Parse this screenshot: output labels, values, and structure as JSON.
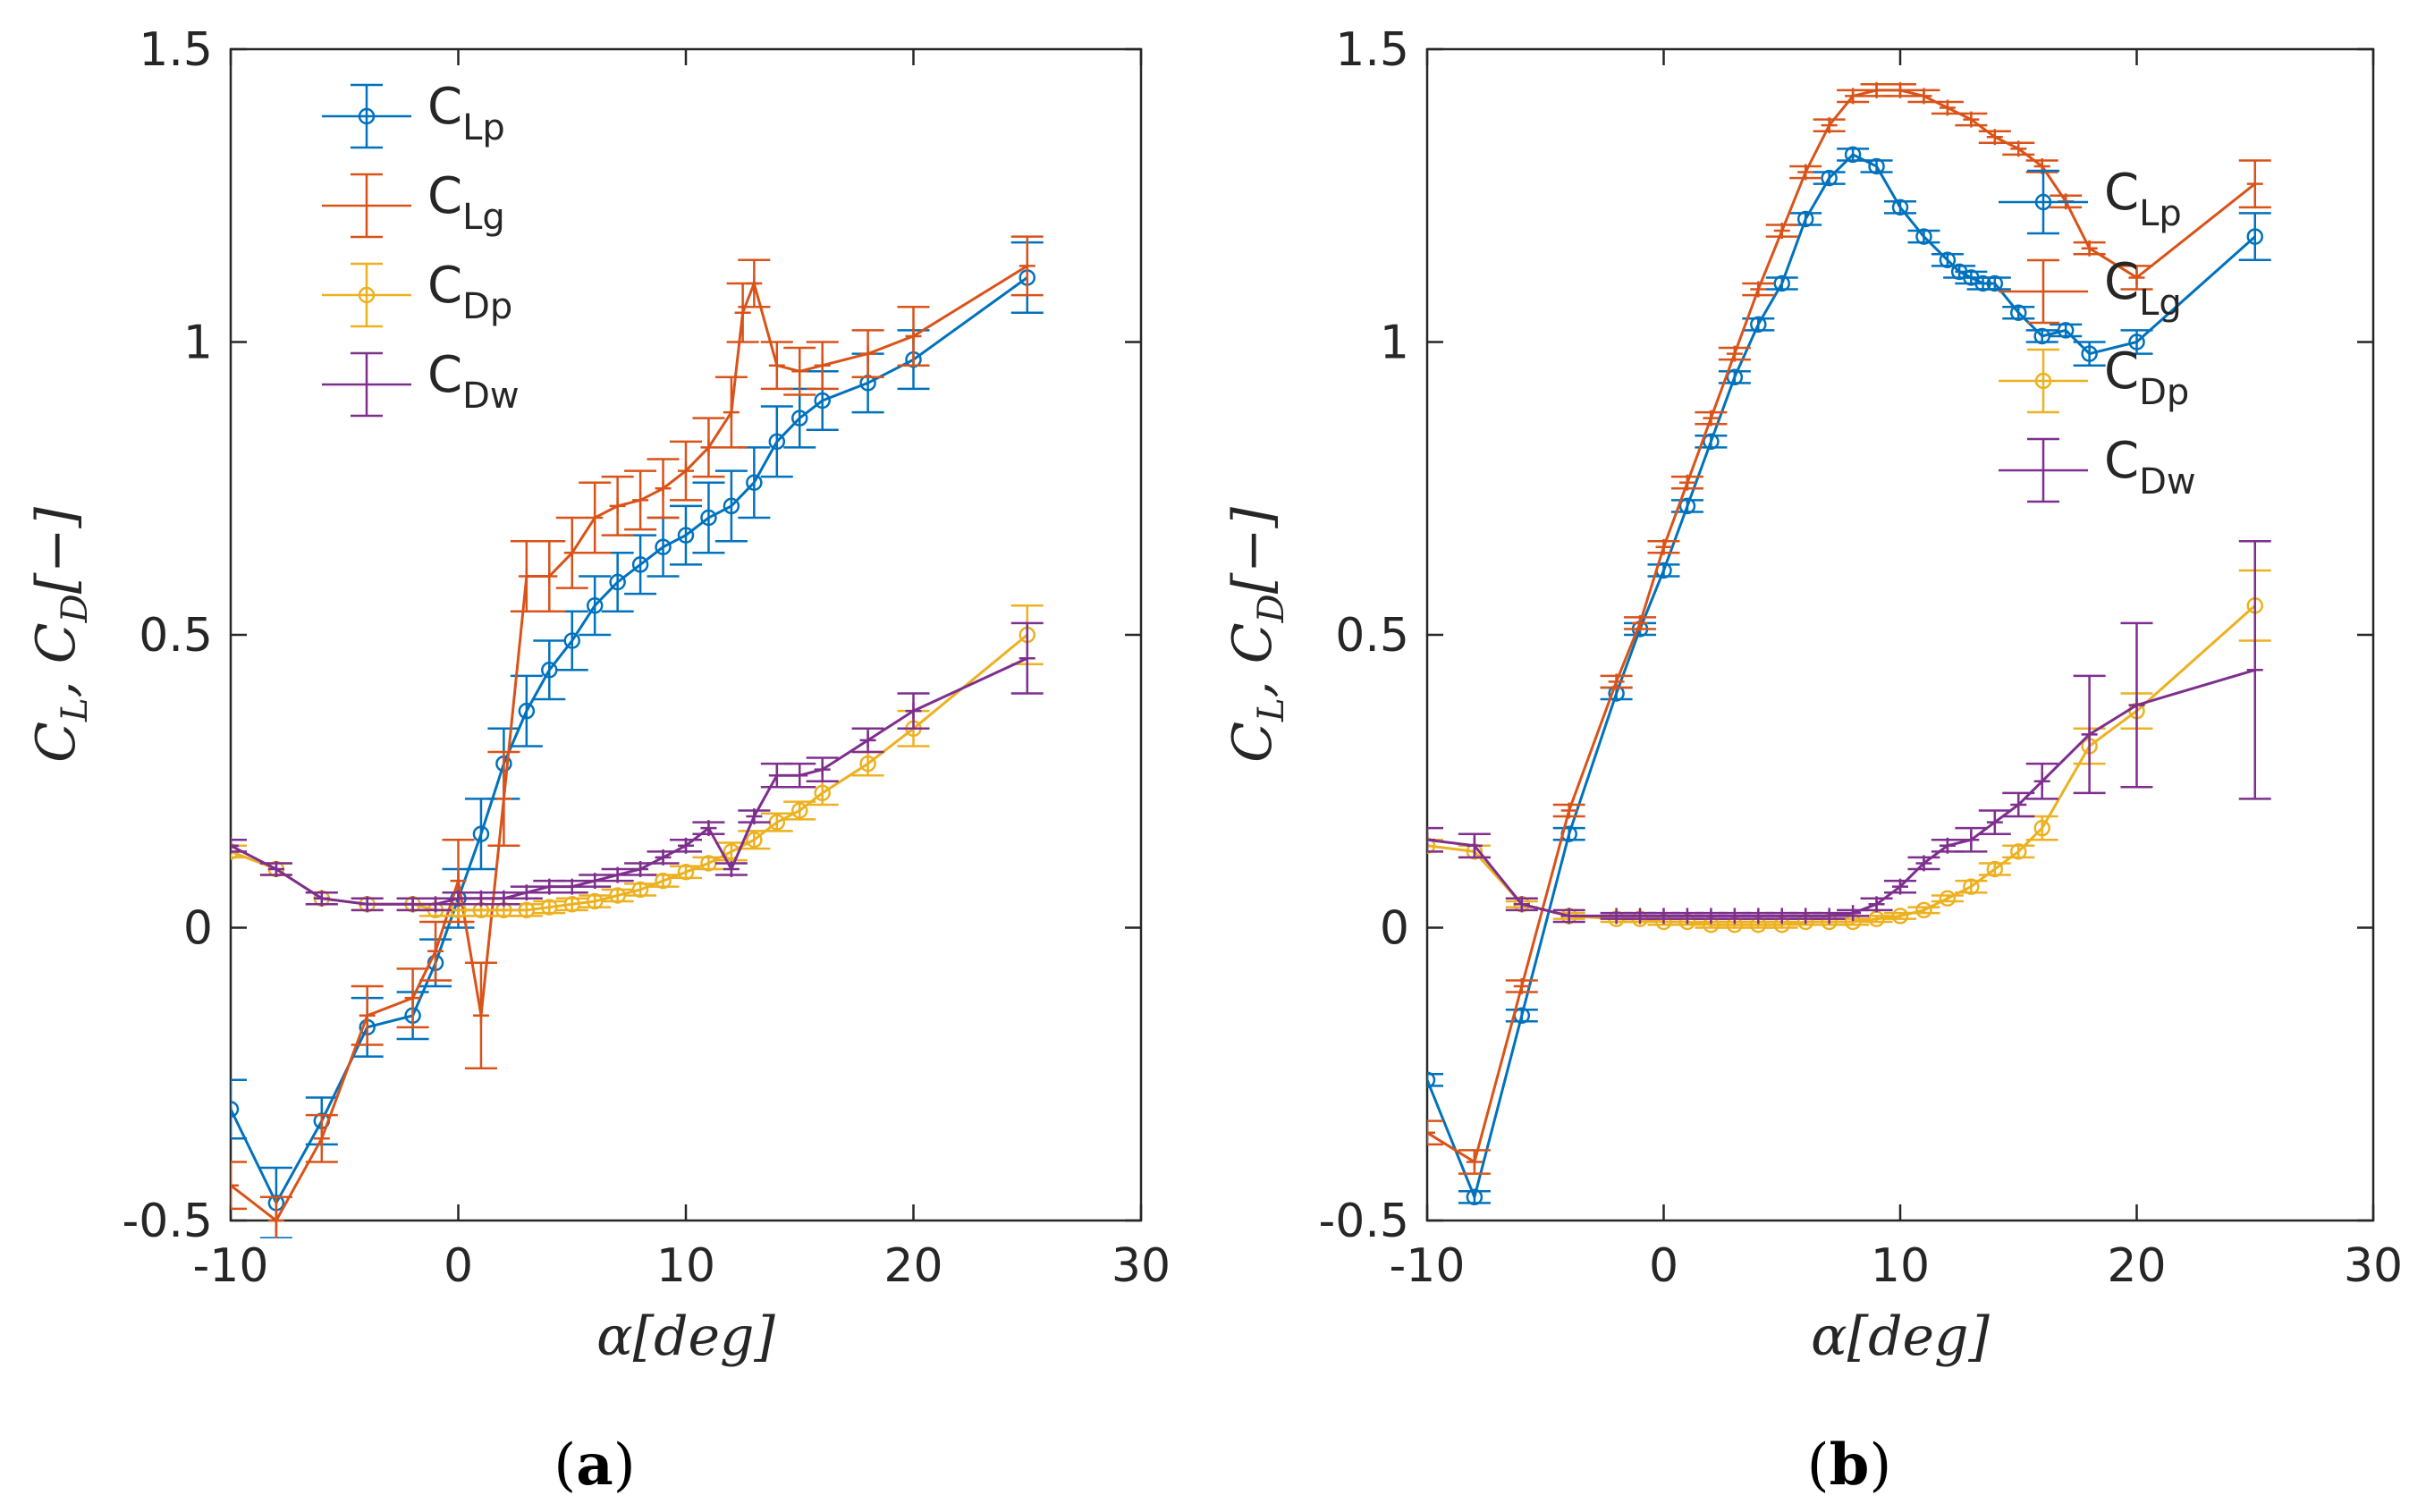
{
  "colors": {
    "Lp": "#0072BD",
    "Lg": "#D95319",
    "Dp": "#EDB120",
    "Dw": "#7E2F8E",
    "axis": "#262626"
  },
  "chart_data": [
    {
      "type": "line",
      "panel": "a",
      "caption": {
        "open": "(",
        "letter": "a",
        "close": ")"
      },
      "xlabel_parts": {
        "sym": "α",
        "bracket": "[deg]"
      },
      "ylabel_parts": {
        "c1": "C",
        "s1": "L",
        "sep": ", ",
        "c2": "C",
        "s2": "D",
        "unit": "[−]"
      },
      "xlim": [
        -10,
        30
      ],
      "ylim": [
        -0.5,
        1.5
      ],
      "xticks": [
        "-10",
        "0",
        "10",
        "20",
        "30"
      ],
      "yticks": [
        "-0.5",
        "0",
        "0.5",
        "1",
        "1.5"
      ],
      "legend_position": "top-left",
      "series": [
        {
          "key": "Lp",
          "main": "C",
          "sub": "Lp",
          "marker": "circle",
          "x": [
            -10,
            -8,
            -6,
            -4,
            -2,
            -1,
            0,
            1,
            2,
            3,
            4,
            5,
            6,
            7,
            8,
            9,
            10,
            11,
            12,
            13,
            14,
            15,
            16,
            18,
            20,
            25
          ],
          "y": [
            -0.31,
            -0.47,
            -0.33,
            -0.17,
            -0.15,
            -0.06,
            0.05,
            0.16,
            0.28,
            0.37,
            0.44,
            0.49,
            0.55,
            0.59,
            0.62,
            0.65,
            0.67,
            0.7,
            0.72,
            0.76,
            0.83,
            0.87,
            0.9,
            0.93,
            0.97,
            1.11
          ],
          "err": [
            0.05,
            0.06,
            0.04,
            0.05,
            0.04,
            0.04,
            0.05,
            0.06,
            0.06,
            0.06,
            0.05,
            0.05,
            0.05,
            0.05,
            0.05,
            0.05,
            0.05,
            0.06,
            0.06,
            0.06,
            0.06,
            0.05,
            0.05,
            0.05,
            0.05,
            0.06
          ]
        },
        {
          "key": "Lg",
          "main": "C",
          "sub": "Lg",
          "marker": "plus",
          "x": [
            -10,
            -8,
            -6,
            -4,
            -2,
            -1,
            0,
            1,
            2,
            3,
            4,
            5,
            6,
            7,
            8,
            9,
            10,
            11,
            12,
            12.5,
            13,
            14,
            15,
            16,
            18,
            20,
            25
          ],
          "y": [
            -0.44,
            -0.5,
            -0.36,
            -0.15,
            -0.12,
            -0.04,
            0.08,
            -0.15,
            0.22,
            0.6,
            0.6,
            0.64,
            0.7,
            0.72,
            0.73,
            0.75,
            0.78,
            0.82,
            0.88,
            1.05,
            1.1,
            0.96,
            0.95,
            0.96,
            0.98,
            1.01,
            1.13
          ],
          "err": [
            0.04,
            0.04,
            0.04,
            0.05,
            0.05,
            0.05,
            0.07,
            0.09,
            0.08,
            0.06,
            0.06,
            0.06,
            0.06,
            0.05,
            0.05,
            0.05,
            0.05,
            0.05,
            0.06,
            0.05,
            0.04,
            0.04,
            0.04,
            0.04,
            0.04,
            0.05,
            0.05
          ]
        },
        {
          "key": "Dp",
          "main": "C",
          "sub": "Dp",
          "marker": "circle",
          "x": [
            -10,
            -8,
            -6,
            -4,
            -2,
            -1,
            0,
            1,
            2,
            3,
            4,
            5,
            6,
            7,
            8,
            9,
            10,
            11,
            12,
            13,
            14,
            15,
            16,
            18,
            20,
            25
          ],
          "y": [
            0.13,
            0.1,
            0.05,
            0.04,
            0.04,
            0.03,
            0.03,
            0.03,
            0.03,
            0.03,
            0.035,
            0.04,
            0.045,
            0.055,
            0.065,
            0.08,
            0.095,
            0.11,
            0.13,
            0.15,
            0.18,
            0.2,
            0.23,
            0.28,
            0.34,
            0.5
          ],
          "err": [
            0.01,
            0.01,
            0.01,
            0.01,
            0.01,
            0.01,
            0.01,
            0.01,
            0.01,
            0.01,
            0.01,
            0.01,
            0.01,
            0.01,
            0.01,
            0.01,
            0.01,
            0.01,
            0.015,
            0.015,
            0.015,
            0.015,
            0.02,
            0.02,
            0.03,
            0.05
          ]
        },
        {
          "key": "Dw",
          "main": "C",
          "sub": "Dw",
          "marker": "plus",
          "x": [
            -10,
            -8,
            -6,
            -4,
            -2,
            -1,
            0,
            1,
            2,
            3,
            4,
            5,
            6,
            7,
            8,
            9,
            10,
            11,
            12,
            13,
            14,
            15,
            16,
            18,
            20,
            25
          ],
          "y": [
            0.14,
            0.1,
            0.05,
            0.04,
            0.04,
            0.04,
            0.05,
            0.05,
            0.05,
            0.06,
            0.07,
            0.07,
            0.08,
            0.09,
            0.1,
            0.12,
            0.14,
            0.17,
            0.1,
            0.19,
            0.26,
            0.26,
            0.27,
            0.32,
            0.37,
            0.46
          ],
          "err": [
            0.01,
            0.01,
            0.01,
            0.01,
            0.01,
            0.01,
            0.01,
            0.01,
            0.01,
            0.01,
            0.01,
            0.01,
            0.01,
            0.01,
            0.01,
            0.01,
            0.01,
            0.01,
            0.01,
            0.01,
            0.02,
            0.02,
            0.02,
            0.02,
            0.03,
            0.06
          ]
        }
      ]
    },
    {
      "type": "line",
      "panel": "b",
      "caption": {
        "open": "(",
        "letter": "b",
        "close": ")"
      },
      "xlabel_parts": {
        "sym": "α",
        "bracket": "[deg]"
      },
      "ylabel_parts": {
        "c1": "C",
        "s1": "L",
        "sep": ", ",
        "c2": "C",
        "s2": "D",
        "unit": "[−]"
      },
      "xlim": [
        -10,
        30
      ],
      "ylim": [
        -0.5,
        1.5
      ],
      "xticks": [
        "-10",
        "0",
        "10",
        "20",
        "30"
      ],
      "yticks": [
        "-0.5",
        "0",
        "0.5",
        "1",
        "1.5"
      ],
      "legend_position": "right",
      "series": [
        {
          "key": "Lp",
          "main": "C",
          "sub": "Lp",
          "marker": "circle",
          "x": [
            -10,
            -8,
            -6,
            -4,
            -2,
            -1,
            0,
            1,
            2,
            3,
            4,
            5,
            6,
            7,
            8,
            9,
            10,
            11,
            12,
            12.5,
            13,
            13.5,
            14,
            15,
            16,
            17,
            18,
            20,
            25
          ],
          "y": [
            -0.26,
            -0.46,
            -0.15,
            0.16,
            0.4,
            0.51,
            0.61,
            0.72,
            0.83,
            0.94,
            1.03,
            1.1,
            1.21,
            1.28,
            1.32,
            1.3,
            1.23,
            1.18,
            1.14,
            1.12,
            1.11,
            1.1,
            1.1,
            1.05,
            1.01,
            1.02,
            0.98,
            1.0,
            1.18
          ],
          "err": [
            0.01,
            0.01,
            0.01,
            0.01,
            0.01,
            0.01,
            0.01,
            0.01,
            0.01,
            0.01,
            0.01,
            0.01,
            0.01,
            0.01,
            0.01,
            0.01,
            0.01,
            0.01,
            0.01,
            0.01,
            0.01,
            0.01,
            0.01,
            0.01,
            0.01,
            0.01,
            0.02,
            0.02,
            0.04
          ]
        },
        {
          "key": "Lg",
          "main": "C",
          "sub": "Lg",
          "marker": "plus",
          "x": [
            -10,
            -8,
            -6,
            -4,
            -2,
            -1,
            0,
            1,
            2,
            3,
            4,
            5,
            6,
            7,
            8,
            9,
            10,
            11,
            12,
            13,
            14,
            15,
            16,
            17,
            18,
            20,
            25
          ],
          "y": [
            -0.35,
            -0.4,
            -0.1,
            0.2,
            0.42,
            0.52,
            0.65,
            0.76,
            0.87,
            0.98,
            1.09,
            1.19,
            1.29,
            1.37,
            1.42,
            1.43,
            1.43,
            1.42,
            1.4,
            1.38,
            1.35,
            1.33,
            1.3,
            1.24,
            1.16,
            1.11,
            1.27
          ],
          "err": [
            0.02,
            0.02,
            0.01,
            0.01,
            0.01,
            0.01,
            0.01,
            0.01,
            0.01,
            0.01,
            0.01,
            0.01,
            0.01,
            0.01,
            0.01,
            0.01,
            0.01,
            0.01,
            0.01,
            0.01,
            0.01,
            0.01,
            0.01,
            0.01,
            0.01,
            0.02,
            0.04
          ]
        },
        {
          "key": "Dp",
          "main": "C",
          "sub": "Dp",
          "marker": "circle",
          "x": [
            -10,
            -8,
            -6,
            -4,
            -2,
            -1,
            0,
            1,
            2,
            3,
            4,
            5,
            6,
            7,
            8,
            9,
            10,
            11,
            12,
            13,
            14,
            15,
            16,
            18,
            20,
            25
          ],
          "y": [
            0.14,
            0.13,
            0.04,
            0.02,
            0.015,
            0.015,
            0.01,
            0.01,
            0.005,
            0.005,
            0.005,
            0.005,
            0.01,
            0.01,
            0.01,
            0.015,
            0.02,
            0.03,
            0.05,
            0.07,
            0.1,
            0.13,
            0.17,
            0.31,
            0.37,
            0.55
          ],
          "err": [
            0.01,
            0.01,
            0.005,
            0.005,
            0.005,
            0.005,
            0.005,
            0.005,
            0.005,
            0.005,
            0.005,
            0.005,
            0.005,
            0.005,
            0.005,
            0.005,
            0.005,
            0.005,
            0.005,
            0.01,
            0.01,
            0.01,
            0.02,
            0.03,
            0.03,
            0.06
          ]
        },
        {
          "key": "Dw",
          "main": "C",
          "sub": "Dw",
          "marker": "plus",
          "x": [
            -10,
            -8,
            -6,
            -4,
            -2,
            -1,
            0,
            1,
            2,
            3,
            4,
            5,
            6,
            7,
            8,
            9,
            10,
            11,
            12,
            13,
            14,
            15,
            16,
            18,
            20,
            25
          ],
          "y": [
            0.15,
            0.14,
            0.04,
            0.02,
            0.02,
            0.02,
            0.02,
            0.02,
            0.02,
            0.02,
            0.02,
            0.02,
            0.02,
            0.02,
            0.025,
            0.04,
            0.07,
            0.11,
            0.14,
            0.15,
            0.18,
            0.21,
            0.25,
            0.33,
            0.38,
            0.44
          ],
          "err": [
            0.02,
            0.02,
            0.01,
            0.01,
            0.005,
            0.005,
            0.005,
            0.005,
            0.005,
            0.005,
            0.005,
            0.005,
            0.005,
            0.005,
            0.005,
            0.01,
            0.01,
            0.01,
            0.01,
            0.02,
            0.02,
            0.02,
            0.03,
            0.1,
            0.14,
            0.22
          ]
        }
      ]
    }
  ]
}
